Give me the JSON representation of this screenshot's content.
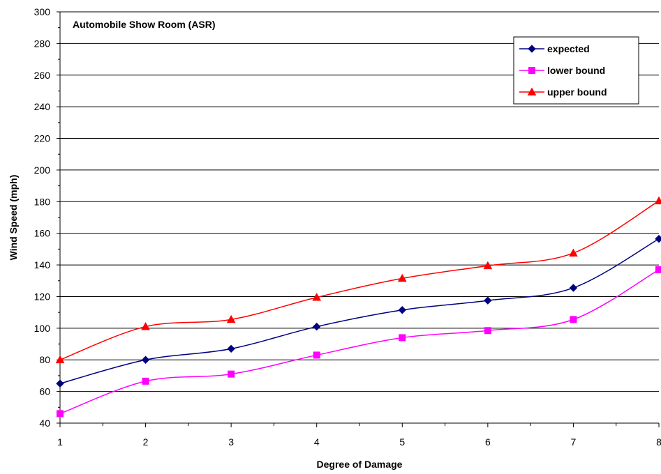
{
  "chart_data": {
    "type": "line",
    "title": "Automobile Show Room (ASR)",
    "xlabel": "Degree of Damage",
    "ylabel": "Wind Speed (mph)",
    "x": [
      1,
      2,
      3,
      4,
      5,
      6,
      7,
      8
    ],
    "x_tick_labels": [
      "1",
      "2",
      "3",
      "4",
      "5",
      "6",
      "7",
      "8"
    ],
    "xlim": [
      1,
      8
    ],
    "ylim": [
      40,
      300
    ],
    "y_ticks": [
      40,
      60,
      80,
      100,
      120,
      140,
      160,
      180,
      200,
      220,
      240,
      260,
      280,
      300
    ],
    "grid": "horizontal",
    "legend_position": "top-right",
    "series": [
      {
        "name": "expected",
        "color": "#000080",
        "marker": "diamond",
        "values": [
          65,
          80,
          87,
          101,
          111.5,
          117.5,
          125.5,
          156.5
        ]
      },
      {
        "name": "lower bound",
        "color": "#ff00ff",
        "marker": "square",
        "values": [
          46,
          66.5,
          71,
          83,
          94,
          98.5,
          105.5,
          137
        ]
      },
      {
        "name": "upper bound",
        "color": "#ff0000",
        "marker": "triangle",
        "values": [
          80,
          101,
          105.5,
          119.5,
          131.5,
          139.5,
          147.5,
          180.5
        ]
      }
    ]
  }
}
